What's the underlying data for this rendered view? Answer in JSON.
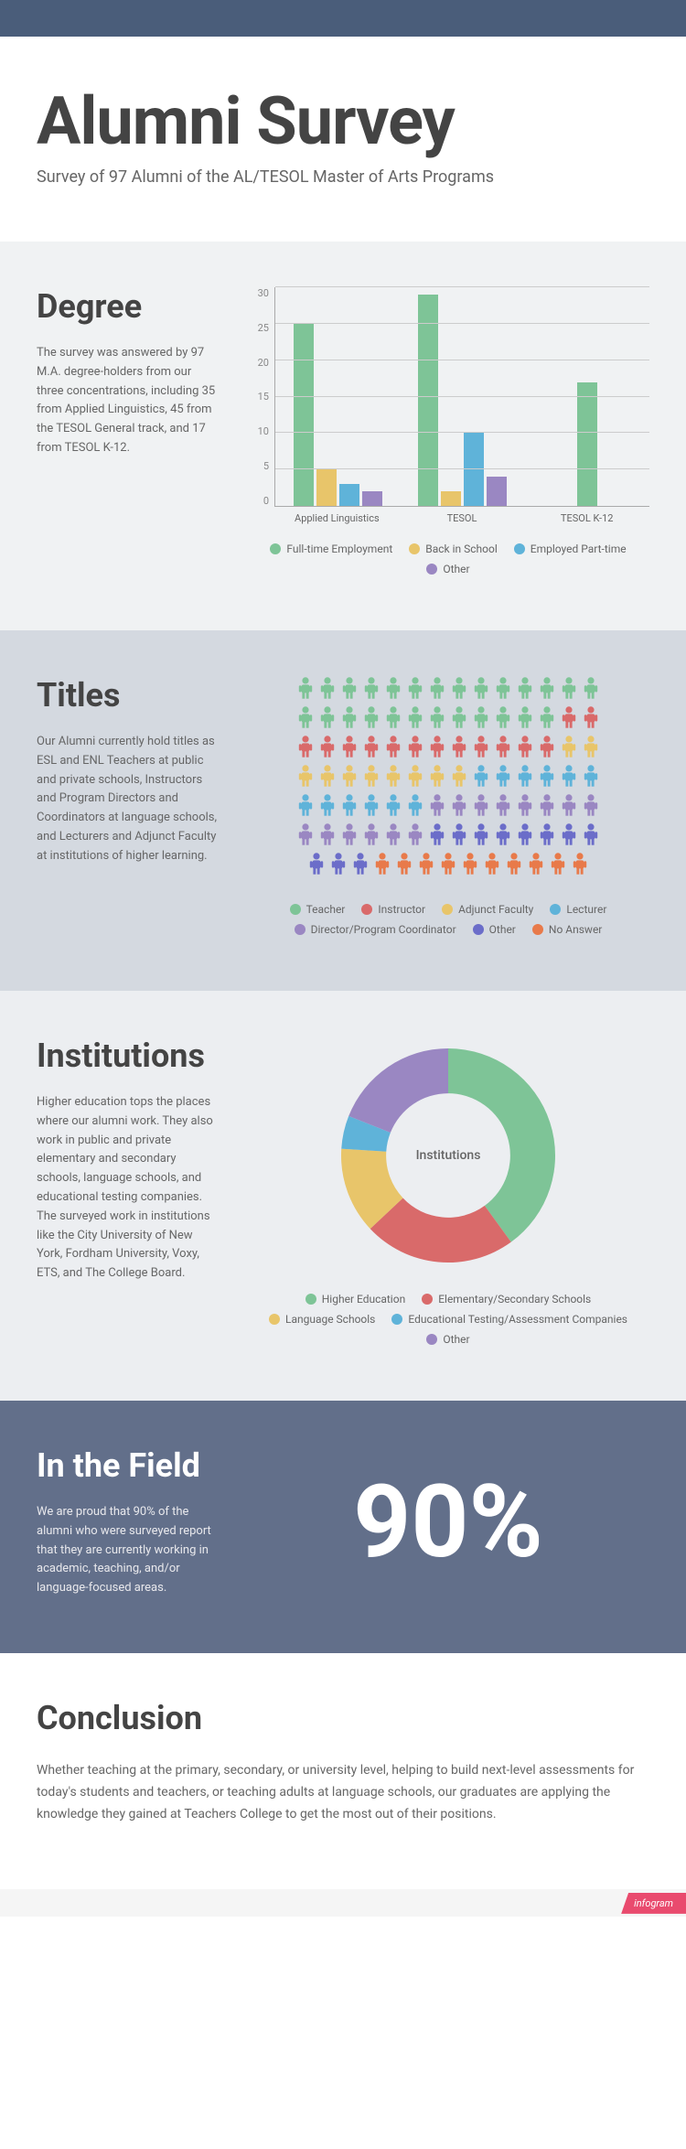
{
  "header": {
    "title": "Alumni Survey",
    "subtitle": "Survey of 97 Alumni of the AL/TESOL Master of Arts Programs"
  },
  "degree": {
    "heading": "Degree",
    "body": "The survey was answered by 97 M.A. degree-holders from our three concentrations, including 35 from Applied Linguistics, 45 from the TESOL General track, and 17 from TESOL K-12.",
    "chart": {
      "type": "bar",
      "ymax": 30,
      "ytick_step": 5,
      "categories": [
        "Applied Linguistics",
        "TESOL",
        "TESOL K-12"
      ],
      "series": [
        {
          "label": "Full-time Employment",
          "color": "#7ec497",
          "values": [
            25,
            29,
            17
          ]
        },
        {
          "label": "Back in School",
          "color": "#e8c56a",
          "values": [
            5,
            2,
            0
          ]
        },
        {
          "label": "Employed Part-time",
          "color": "#5fb3d9",
          "values": [
            3,
            10,
            0
          ]
        },
        {
          "label": "Other",
          "color": "#9a87c2",
          "values": [
            2,
            4,
            0
          ]
        }
      ],
      "tick_color": "#888",
      "grid_color": "#cccccc",
      "axis_color": "#aaaaaa",
      "label_fontsize": 11
    }
  },
  "titles": {
    "heading": "Titles",
    "body": "Our Alumni currently hold titles as ESL and ENL Teachers at public and private schools, Instructors and Program Directors and Coordinators at language schools, and Lecturers and Adjunct Faculty at institutions of higher learning.",
    "pictogram": {
      "rows": 7,
      "cols": 14,
      "total": 97,
      "categories": [
        {
          "label": "Teacher",
          "color": "#7ec497",
          "count": 26
        },
        {
          "label": "Instructor",
          "color": "#d96a6a",
          "count": 14
        },
        {
          "label": "Adjunct Faculty",
          "color": "#e8c56a",
          "count": 10
        },
        {
          "label": "Lecturer",
          "color": "#5fb3d9",
          "count": 12
        },
        {
          "label": "Director/Program Coordinator",
          "color": "#9a87c2",
          "count": 14
        },
        {
          "label": "Other",
          "color": "#6b6dc9",
          "count": 11
        },
        {
          "label": "No Answer",
          "color": "#e87a4a",
          "count": 10
        }
      ]
    }
  },
  "institutions": {
    "heading": "Institutions",
    "body": "Higher education tops the places where our alumni work. They also work in public and private elementary and secondary schools, language schools, and educational testing companies. The surveyed work in institutions like the City University of New York, Fordham University, Voxy, ETS, and The College Board.",
    "donut": {
      "type": "donut",
      "center_label": "Institutions",
      "inner_ratio": 0.58,
      "slices": [
        {
          "label": "Higher Education",
          "color": "#7ec497",
          "value": 40
        },
        {
          "label": "Elementary/Secondary Schools",
          "color": "#d96a6a",
          "value": 23
        },
        {
          "label": "Language Schools",
          "color": "#e8c56a",
          "value": 13
        },
        {
          "label": "Educational Testing/Assessment Companies",
          "color": "#5fb3d9",
          "value": 5
        },
        {
          "label": "Other",
          "color": "#9a87c2",
          "value": 19
        }
      ]
    }
  },
  "field": {
    "heading": "In the Field",
    "body": "We are proud that 90% of the alumni who were surveyed report that they are currently working in academic, teaching, and/or language-focused areas.",
    "big_number": "90%"
  },
  "conclusion": {
    "heading": "Conclusion",
    "body": "Whether teaching at the primary, secondary, or university level, helping to build next-level assessments for today's students and teachers, or teaching adults at language schools, our graduates are applying the knowledge they gained at Teachers College to get the most out of their positions."
  },
  "footer": {
    "badge": "infogram"
  }
}
